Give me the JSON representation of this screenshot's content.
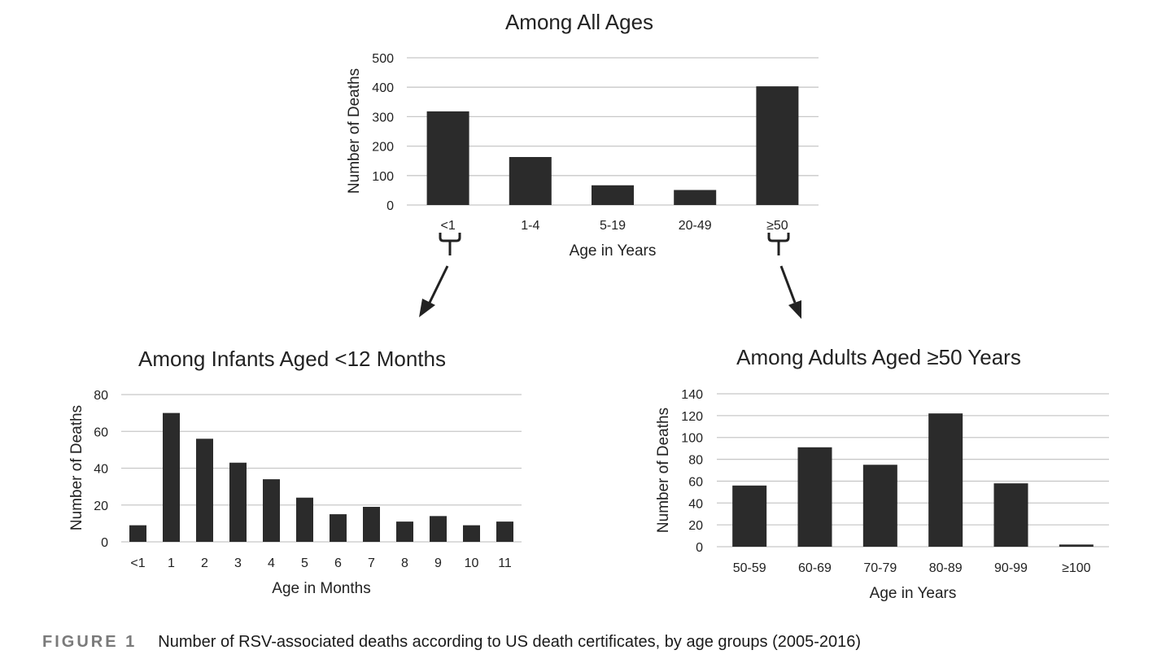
{
  "chart_data": [
    {
      "type": "bar",
      "title": "Among All Ages",
      "categories": [
        "<1",
        "1-4",
        "5-19",
        "20-49",
        "≥50"
      ],
      "values": [
        318,
        163,
        67,
        51,
        403
      ],
      "xlabel": "Age in Years",
      "ylabel": "Number of Deaths",
      "ylim": [
        0,
        500
      ],
      "yticks": [
        0,
        100,
        200,
        300,
        400,
        500
      ],
      "grid": true
    },
    {
      "type": "bar",
      "title": "Among Infants Aged <12 Months",
      "categories": [
        "<1",
        "1",
        "2",
        "3",
        "4",
        "5",
        "6",
        "7",
        "8",
        "9",
        "10",
        "11"
      ],
      "values": [
        9,
        70,
        56,
        43,
        34,
        24,
        15,
        19,
        11,
        14,
        9,
        11
      ],
      "xlabel": "Age in Months",
      "ylabel": "Number of Deaths",
      "ylim": [
        0,
        80
      ],
      "yticks": [
        0,
        20,
        40,
        60,
        80
      ],
      "grid": true
    },
    {
      "type": "bar",
      "title": "Among Adults Aged ≥50 Years",
      "categories": [
        "50-59",
        "60-69",
        "70-79",
        "80-89",
        "90-99",
        "≥100"
      ],
      "values": [
        56,
        91,
        75,
        122,
        58,
        2
      ],
      "xlabel": "Age in Years",
      "ylabel": "Number of Deaths",
      "ylim": [
        0,
        140
      ],
      "yticks": [
        0,
        20,
        40,
        60,
        80,
        100,
        120,
        140
      ],
      "grid": true
    }
  ],
  "caption": {
    "label": "FIGURE 1",
    "text": "Number of RSV-associated deaths according to US death certificates, by age groups (2005-2016)"
  },
  "colors": {
    "bar": "#2b2b2b",
    "grid": "#c8c8c8",
    "caption_label": "#7a7a7a"
  }
}
